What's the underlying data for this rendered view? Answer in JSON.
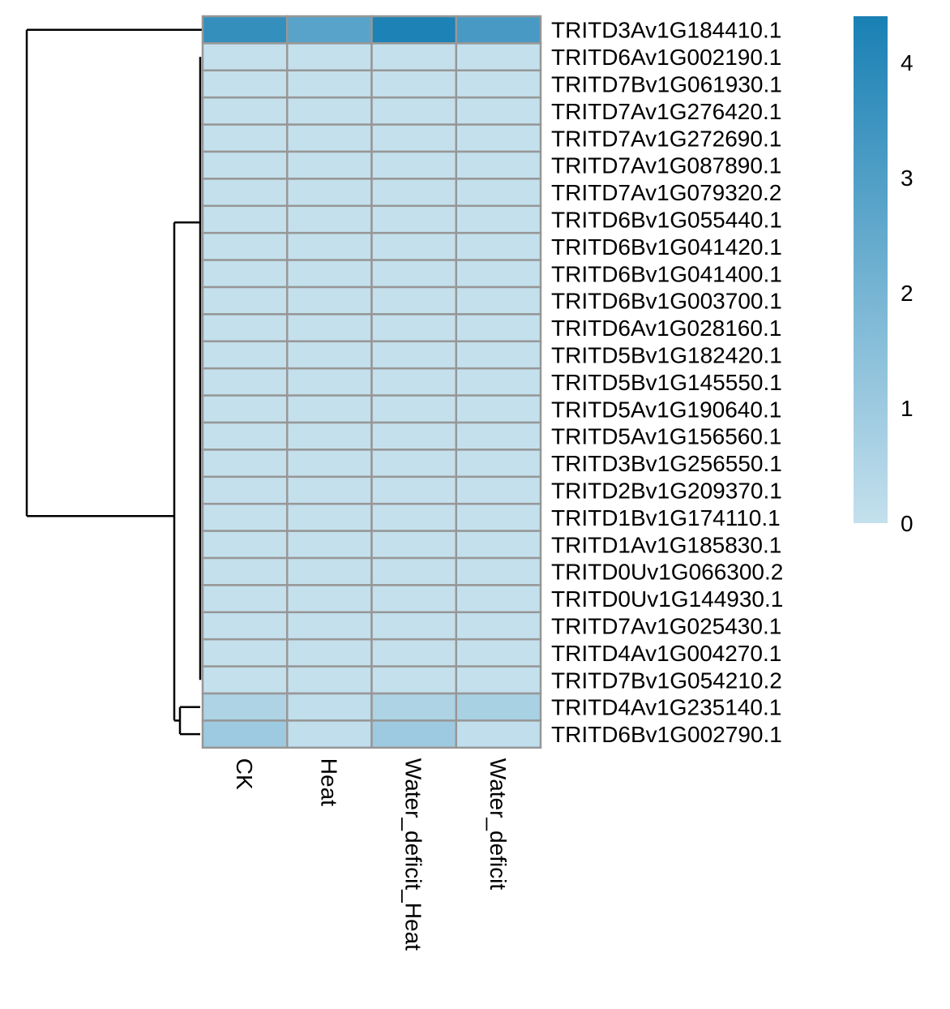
{
  "chart_data": {
    "type": "heatmap",
    "title": "",
    "xlabel": "",
    "ylabel": "",
    "columns": [
      "CK",
      "Heat",
      "Water_deficit_Heat",
      "Water_deficit"
    ],
    "rows": [
      "TRITD3Av1G184410.1",
      "TRITD6Av1G002190.1",
      "TRITD7Bv1G061930.1",
      "TRITD7Av1G276420.1",
      "TRITD7Av1G272690.1",
      "TRITD7Av1G087890.1",
      "TRITD7Av1G079320.2",
      "TRITD6Bv1G055440.1",
      "TRITD6Bv1G041420.1",
      "TRITD6Bv1G041400.1",
      "TRITD6Bv1G003700.1",
      "TRITD6Av1G028160.1",
      "TRITD5Bv1G182420.1",
      "TRITD5Bv1G145550.1",
      "TRITD5Av1G190640.1",
      "TRITD5Av1G156560.1",
      "TRITD3Bv1G256550.1",
      "TRITD2Bv1G209370.1",
      "TRITD1Bv1G174110.1",
      "TRITD1Av1G185830.1",
      "TRITD0Uv1G066300.2",
      "TRITD0Uv1G144930.1",
      "TRITD7Av1G025430.1",
      "TRITD4Av1G004270.1",
      "TRITD7Bv1G054210.2",
      "TRITD4Av1G235140.1",
      "TRITD6Bv1G002790.1"
    ],
    "values": [
      [
        3.7,
        2.8,
        4.3,
        3.2
      ],
      [
        0,
        0,
        0,
        0
      ],
      [
        0,
        0,
        0,
        0
      ],
      [
        0,
        0,
        0,
        0
      ],
      [
        0,
        0,
        0,
        0
      ],
      [
        0,
        0,
        0,
        0
      ],
      [
        0,
        0,
        0,
        0
      ],
      [
        0,
        0,
        0,
        0
      ],
      [
        0,
        0,
        0,
        0
      ],
      [
        0,
        0,
        0,
        0
      ],
      [
        0,
        0,
        0,
        0
      ],
      [
        0,
        0,
        0,
        0
      ],
      [
        0,
        0,
        0,
        0
      ],
      [
        0,
        0,
        0,
        0
      ],
      [
        0,
        0,
        0,
        0
      ],
      [
        0,
        0,
        0,
        0
      ],
      [
        0,
        0,
        0,
        0
      ],
      [
        0,
        0,
        0,
        0
      ],
      [
        0,
        0,
        0,
        0
      ],
      [
        0,
        0,
        0,
        0
      ],
      [
        0,
        0,
        0,
        0
      ],
      [
        0,
        0,
        0,
        0
      ],
      [
        0,
        0,
        0,
        0
      ],
      [
        0,
        0,
        0,
        0
      ],
      [
        0,
        0,
        0,
        0
      ],
      [
        0.6,
        0.1,
        0.6,
        0.7
      ],
      [
        1.0,
        0.1,
        1.0,
        0.1
      ]
    ],
    "color_scale": {
      "min": 0,
      "max": 4.4,
      "low_color": "#c4e0ed",
      "high_color": "#1980b4",
      "ticks": [
        "0",
        "1",
        "2",
        "3",
        "4"
      ]
    },
    "cell_border_color": "#979797",
    "row_dendrogram": true,
    "legend_position": "right"
  }
}
